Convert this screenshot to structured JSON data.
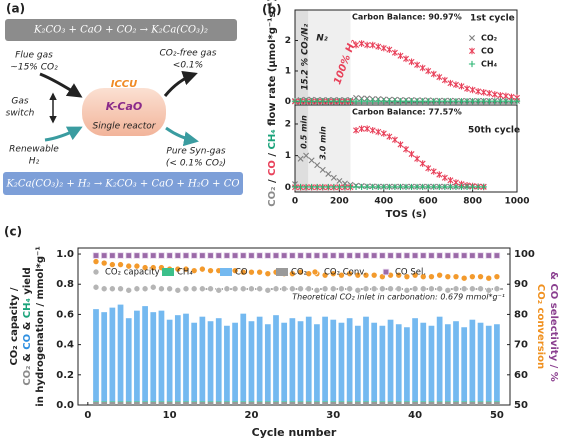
{
  "diagram": {
    "panel_labels": [
      "(a)",
      "(b)",
      "(c)"
    ],
    "equation_top": "K₂CO₃ + CaO + CO₂ → K₂Ca(CO₃)₂",
    "flue_gas": [
      "Flue gas",
      "~15% CO₂"
    ],
    "co2_free": [
      "CO₂-free gas",
      "<0.1%"
    ],
    "iccu": "ICCU",
    "reactor": "K-CaO",
    "single_reactor": "Single reactor",
    "gas_switch": [
      "Gas",
      "switch"
    ],
    "renewable": [
      "Renewable",
      "H₂"
    ],
    "syngas": [
      "Pure Syn-gas",
      "(< 0.1% CO₂)"
    ],
    "equation_bottom": "K₂Ca(CO₃)₂ + H₂ → K₂CO₃ + CaO + H₂O + CO"
  },
  "chart_data": [
    {
      "type": "scatter",
      "x": [
        0,
        25,
        50,
        75,
        100,
        125,
        150,
        175,
        200,
        225,
        250,
        275,
        300,
        325,
        350,
        375,
        400,
        425,
        450,
        475,
        500,
        525,
        550,
        575,
        600,
        625,
        650,
        675,
        700,
        725,
        750,
        775,
        800,
        825,
        850,
        875,
        900,
        925,
        950,
        975,
        1000
      ],
      "xlim": [
        0,
        1000
      ],
      "ylim": [
        -0.05,
        3
      ],
      "yticks": [
        0,
        1,
        2
      ],
      "regions": [
        {
          "x": [
            0,
            60
          ],
          "color": "#dedede"
        },
        {
          "x": [
            60,
            250
          ],
          "color": "#efefef"
        }
      ],
      "ylabel_parts": [
        {
          "text": "CO₂",
          "color": "#8a8a8a"
        },
        {
          "text": " / ",
          "color": "#222222"
        },
        {
          "text": "CO",
          "color": "#e8415a"
        },
        {
          "text": " / ",
          "color": "#222222"
        },
        {
          "text": "CH₄",
          "color": "#1aa37a"
        },
        {
          "text": " flow rate (µmol*g⁻¹s⁻¹)",
          "color": "#222222"
        }
      ],
      "legend": true,
      "annotations": [
        "Carbon Balance: 90.97%",
        "1st cycle",
        "15.2 % CO₂/N₂",
        "N₂",
        "100% H₂"
      ],
      "series": [
        {
          "name": "CO₂",
          "color": "#7f7f7f",
          "marker": "x",
          "values": [
            0.02,
            0.05,
            0.06,
            0.06,
            0.05,
            0.05,
            0.05,
            0.05,
            0.05,
            0.05,
            0.05,
            0.12,
            0.1,
            0.1,
            0.08,
            0.08,
            0.07,
            0.06,
            0.06,
            0.05,
            0.05,
            0.05,
            0.04,
            0.04,
            0.04,
            0.03,
            0.03,
            0.03,
            0.03,
            0.02,
            0.02,
            0.02,
            0.02,
            0.02,
            0.02,
            0.02,
            0.02,
            0.02,
            0.02,
            0.02,
            0.02
          ]
        },
        {
          "name": "CO",
          "color": "#e8415a",
          "marker": "asterisk",
          "values": [
            0,
            0,
            0,
            0,
            0,
            0,
            0,
            0,
            0,
            0,
            0,
            1.85,
            1.9,
            1.85,
            1.85,
            1.8,
            1.75,
            1.7,
            1.6,
            1.5,
            1.4,
            1.3,
            1.2,
            1.1,
            1.0,
            0.9,
            0.8,
            0.7,
            0.6,
            0.55,
            0.5,
            0.42,
            0.38,
            0.33,
            0.3,
            0.27,
            0.23,
            0.2,
            0.18,
            0.15,
            0.12
          ]
        },
        {
          "name": "CH₄",
          "color": "#2bb673",
          "marker": "plus",
          "values": [
            0.01,
            0.01,
            0.01,
            0.01,
            0.01,
            0.01,
            0.01,
            0.01,
            0.01,
            0.01,
            0.01,
            0.01,
            0.01,
            0.01,
            0.01,
            0.01,
            0.01,
            0.01,
            0.01,
            0.01,
            0.01,
            0.01,
            0.01,
            0.01,
            0.01,
            0.01,
            0.01,
            0.01,
            0.01,
            0.01,
            0.01,
            0.01,
            0.01,
            0.01,
            0.01,
            0.01,
            0.01,
            0.01,
            0.01,
            0.01,
            0.01
          ]
        }
      ]
    },
    {
      "type": "scatter",
      "x": [
        0,
        25,
        50,
        75,
        100,
        125,
        150,
        175,
        200,
        225,
        250,
        275,
        300,
        325,
        350,
        375,
        400,
        425,
        450,
        475,
        500,
        525,
        550,
        575,
        600,
        625,
        650,
        675,
        700,
        725,
        750,
        775,
        800,
        825,
        850,
        875,
        900,
        925,
        950,
        975,
        1000
      ],
      "xlim": [
        0,
        1000
      ],
      "ylim": [
        -0.15,
        2.6
      ],
      "yticks": [
        0,
        1,
        2
      ],
      "xticks": [
        0,
        200,
        400,
        600,
        800,
        1000
      ],
      "xlabel": "TOS (s)",
      "regions": [
        {
          "x": [
            0,
            60
          ],
          "color": "#dedede"
        },
        {
          "x": [
            60,
            250
          ],
          "color": "#efefef"
        }
      ],
      "annotations": [
        "Carbon Balance: 77.57%",
        "50th cycle",
        "0.5 min",
        "3.0 min"
      ],
      "series": [
        {
          "name": "CO₂",
          "color": "#7f7f7f",
          "marker": "x",
          "values": [
            0.1,
            0.9,
            1.0,
            0.85,
            0.7,
            0.55,
            0.42,
            0.3,
            0.2,
            0.12,
            0.08,
            0.05,
            0.04,
            0.03,
            0.03,
            0.02,
            0.02,
            0.02,
            0.02,
            0.02,
            0.02,
            0.02,
            0.02,
            0.02,
            0.02,
            0.02,
            0.02,
            0.02,
            0.02,
            0.02,
            0.02,
            0.02,
            0.02,
            0.02,
            0.02,
            null,
            null,
            null,
            null,
            null,
            null
          ]
        },
        {
          "name": "CO",
          "color": "#e8415a",
          "marker": "asterisk",
          "values": [
            0,
            0,
            0,
            0,
            0,
            0,
            0,
            0,
            0,
            0,
            0,
            1.8,
            1.85,
            1.85,
            1.8,
            1.75,
            1.7,
            1.6,
            1.5,
            1.35,
            1.2,
            1.05,
            0.9,
            0.75,
            0.6,
            0.5,
            0.4,
            0.3,
            0.22,
            0.15,
            0.1,
            0.06,
            0.04,
            0.02,
            0.01,
            null,
            null,
            null,
            null,
            null,
            null
          ]
        },
        {
          "name": "CH₄",
          "color": "#2bb673",
          "marker": "plus",
          "values": [
            0.01,
            0.01,
            0.01,
            0.01,
            0.01,
            0.01,
            0.01,
            0.01,
            0.01,
            0.01,
            0.01,
            0.01,
            0.01,
            0.01,
            0.01,
            0.01,
            0.01,
            0.01,
            0.01,
            0.01,
            0.01,
            0.01,
            0.01,
            0.01,
            0.01,
            0.01,
            0.01,
            0.01,
            0.01,
            0.01,
            0.01,
            0.01,
            0.01,
            0.01,
            0.01,
            null,
            null,
            null,
            null,
            null,
            null
          ]
        }
      ]
    },
    {
      "type": "bar",
      "x": [
        1,
        2,
        3,
        4,
        5,
        6,
        7,
        8,
        9,
        10,
        11,
        12,
        13,
        14,
        15,
        16,
        17,
        18,
        19,
        20,
        21,
        22,
        23,
        24,
        25,
        26,
        27,
        28,
        29,
        30,
        31,
        32,
        33,
        34,
        35,
        36,
        37,
        38,
        39,
        40,
        41,
        42,
        43,
        44,
        45,
        46,
        47,
        48,
        49,
        50
      ],
      "xlim": [
        -1.2,
        51.6
      ],
      "xticks": [
        0,
        10,
        20,
        30,
        40,
        50
      ],
      "xlabel": "Cycle number",
      "ylim": [
        0,
        1.04
      ],
      "yticks": [
        {
          "value": 0,
          "label": "0.0"
        },
        0.2,
        0.4,
        0.6,
        0.8,
        {
          "value": 1,
          "label": "1.0"
        }
      ],
      "y2lim": [
        50,
        102
      ],
      "y2ticks": [
        50,
        60,
        70,
        80,
        90,
        100
      ],
      "ylabel_lines": [
        [
          {
            "text": "CO₂ capacity /",
            "color": "#222222"
          }
        ],
        [
          {
            "text": "CO₂",
            "color": "#8a8a8a"
          },
          {
            "text": " & ",
            "color": "#222222"
          },
          {
            "text": "CO",
            "color": "#2f8fe0"
          },
          {
            "text": " & ",
            "color": "#222222"
          },
          {
            "text": "CH₄",
            "color": "#1aa37a"
          },
          {
            "text": " yield",
            "color": "#222222"
          }
        ],
        [
          {
            "text": "in hydrogenation / mmol*g⁻¹",
            "color": "#222222"
          }
        ]
      ],
      "y2label_lines": [
        [
          {
            "text": "CO₂ conversion",
            "color": "#f0901e"
          }
        ],
        [
          {
            "text": "& CO selectivity / %",
            "color": "#8a3f8f"
          }
        ]
      ],
      "annotation": "Theoretical CO₂ inlet in carbonation: 0.679 mmol*g⁻¹",
      "series": [
        {
          "name": "CO₂ capacity",
          "color": "#b5b5b5",
          "marker": "circle",
          "values": [
            0.78,
            0.77,
            0.77,
            0.77,
            0.76,
            0.77,
            0.77,
            0.78,
            0.77,
            0.77,
            0.76,
            0.77,
            0.77,
            0.77,
            0.77,
            0.76,
            0.77,
            0.77,
            0.77,
            0.77,
            0.77,
            0.76,
            0.77,
            0.77,
            0.77,
            0.77,
            0.77,
            0.76,
            0.77,
            0.77,
            0.77,
            0.77,
            0.76,
            0.77,
            0.77,
            0.77,
            0.77,
            0.77,
            0.76,
            0.77,
            0.77,
            0.77,
            0.77,
            0.76,
            0.77,
            0.77,
            0.77,
            0.77,
            0.76,
            0.77
          ]
        },
        {
          "name": "CO₂",
          "color": "#9a9a9a",
          "marker": "bar",
          "values": [
            0.02,
            0.02,
            0.02,
            0.02,
            0.02,
            0.02,
            0.02,
            0.02,
            0.02,
            0.02,
            0.02,
            0.02,
            0.02,
            0.02,
            0.02,
            0.02,
            0.02,
            0.02,
            0.02,
            0.02,
            0.02,
            0.02,
            0.02,
            0.02,
            0.02,
            0.02,
            0.02,
            0.02,
            0.02,
            0.02,
            0.02,
            0.02,
            0.02,
            0.02,
            0.02,
            0.02,
            0.02,
            0.02,
            0.02,
            0.02,
            0.02,
            0.02,
            0.02,
            0.02,
            0.02,
            0.02,
            0.02,
            0.02,
            0.02,
            0.02
          ]
        },
        {
          "name": "CH₄",
          "color": "#3cbf8a",
          "marker": "bar",
          "values": [
            0.005,
            0.005,
            0.005,
            0.005,
            0.005,
            0.005,
            0.005,
            0.005,
            0.005,
            0.005,
            0.005,
            0.005,
            0.005,
            0.005,
            0.005,
            0.005,
            0.005,
            0.005,
            0.005,
            0.005,
            0.005,
            0.005,
            0.005,
            0.005,
            0.005,
            0.005,
            0.005,
            0.005,
            0.005,
            0.005,
            0.005,
            0.005,
            0.005,
            0.005,
            0.005,
            0.005,
            0.005,
            0.005,
            0.005,
            0.005,
            0.005,
            0.005,
            0.005,
            0.005,
            0.005,
            0.005,
            0.005,
            0.005,
            0.005,
            0.005
          ]
        },
        {
          "name": "CO",
          "color": "#74b9f0",
          "marker": "bar",
          "values": [
            0.61,
            0.59,
            0.62,
            0.64,
            0.55,
            0.6,
            0.63,
            0.59,
            0.6,
            0.54,
            0.57,
            0.58,
            0.52,
            0.56,
            0.53,
            0.55,
            0.5,
            0.52,
            0.58,
            0.53,
            0.56,
            0.51,
            0.57,
            0.52,
            0.55,
            0.53,
            0.56,
            0.51,
            0.56,
            0.54,
            0.52,
            0.55,
            0.5,
            0.56,
            0.52,
            0.5,
            0.54,
            0.51,
            0.49,
            0.55,
            0.52,
            0.5,
            0.56,
            0.51,
            0.53,
            0.49,
            0.54,
            0.52,
            0.5,
            0.51
          ]
        },
        {
          "name": "CO₂ Conv.",
          "color": "#f39a2c",
          "marker": "circle",
          "axis": "y2",
          "values": [
            97.5,
            97,
            96.5,
            96.5,
            96,
            96,
            95.5,
            95.5,
            95.5,
            95,
            95,
            95,
            94.5,
            95,
            94.5,
            94.5,
            94,
            94.5,
            94,
            94,
            94,
            93.5,
            94,
            93.5,
            93.5,
            94,
            93.5,
            93.5,
            93,
            93.5,
            93,
            93.5,
            93,
            93,
            93,
            92.5,
            93,
            93,
            92.5,
            93,
            92.5,
            92.5,
            93,
            92.5,
            92.5,
            92,
            92.5,
            92.5,
            92,
            92.5
          ]
        },
        {
          "name": "CO Sel.",
          "color": "#9b6aa8",
          "marker": "square",
          "axis": "y2",
          "values": [
            99.5,
            99.5,
            99.5,
            99.5,
            99.5,
            99.5,
            99.5,
            99.5,
            99.5,
            99.5,
            99.5,
            99.5,
            99.5,
            99.5,
            99.5,
            99.5,
            99.5,
            99.5,
            99.5,
            99.5,
            99.5,
            99.5,
            99.5,
            99.5,
            99.5,
            99.5,
            99.5,
            99.5,
            99.5,
            99.5,
            99.5,
            99.5,
            99.5,
            99.5,
            99.5,
            99.5,
            99.5,
            99.5,
            99.5,
            99.5,
            99.5,
            99.5,
            99.5,
            99.5,
            99.5,
            99.5,
            99.5,
            99.5,
            99.5,
            99.5
          ]
        }
      ]
    }
  ]
}
